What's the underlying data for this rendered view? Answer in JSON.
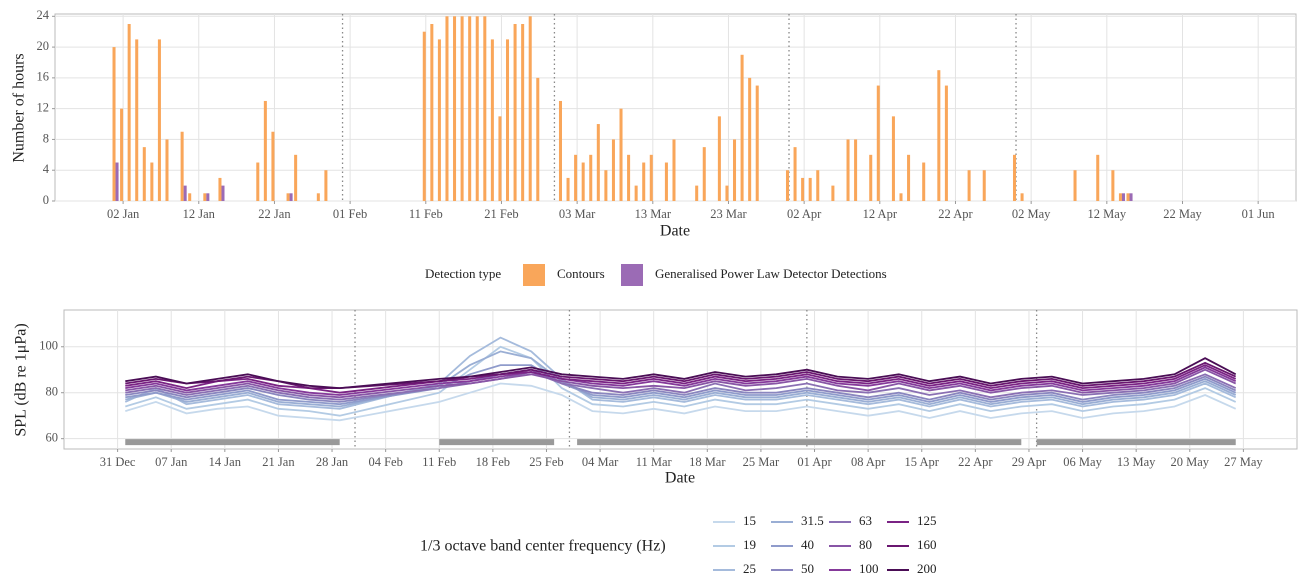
{
  "chart_data": [
    {
      "type": "bar",
      "y_label": "Number of hours",
      "x_label": "Date",
      "legend_title": "Detection type",
      "legend": "bottom",
      "grid": true,
      "x": [
        "01 Jan",
        "02 Jan",
        "03 Jan",
        "04 Jan",
        "05 Jan",
        "06 Jan",
        "07 Jan",
        "08 Jan",
        "10 Jan",
        "11 Jan",
        "13 Jan",
        "15 Jan",
        "20 Jan",
        "21 Jan",
        "22 Jan",
        "24 Jan",
        "25 Jan",
        "28 Jan",
        "29 Jan",
        "11 Feb",
        "12 Feb",
        "13 Feb",
        "14 Feb",
        "15 Feb",
        "16 Feb",
        "17 Feb",
        "18 Feb",
        "19 Feb",
        "20 Feb",
        "21 Feb",
        "22 Feb",
        "23 Feb",
        "24 Feb",
        "25 Feb",
        "26 Feb",
        "01 Mar",
        "02 Mar",
        "03 Mar",
        "04 Mar",
        "05 Mar",
        "06 Mar",
        "07 Mar",
        "08 Mar",
        "09 Mar",
        "10 Mar",
        "11 Mar",
        "12 Mar",
        "13 Mar",
        "15 Mar",
        "16 Mar",
        "19 Mar",
        "20 Mar",
        "22 Mar",
        "23 Mar",
        "24 Mar",
        "25 Mar",
        "26 Mar",
        "27 Mar",
        "31 Mar",
        "01 Apr",
        "02 Apr",
        "03 Apr",
        "04 Apr",
        "06 Apr",
        "08 Apr",
        "09 Apr",
        "11 Apr",
        "12 Apr",
        "14 Apr",
        "15 Apr",
        "16 Apr",
        "18 Apr",
        "20 Apr",
        "21 Apr",
        "24 Apr",
        "26 Apr",
        "30 Apr",
        "01 May",
        "08 May",
        "11 May",
        "13 May",
        "14 May",
        "15 May"
      ],
      "series": [
        {
          "name": "Contours",
          "color": "#f9a65a",
          "values": [
            20,
            12,
            23,
            21,
            7,
            5,
            21,
            8,
            9,
            1,
            1,
            3,
            5,
            13,
            9,
            1,
            6,
            1,
            4,
            22,
            23,
            21,
            24,
            24,
            24,
            24,
            24,
            24,
            21,
            11,
            21,
            23,
            23,
            24,
            16,
            13,
            3,
            6,
            5,
            6,
            10,
            4,
            8,
            12,
            6,
            2,
            5,
            6,
            5,
            8,
            2,
            7,
            11,
            2,
            8,
            19,
            16,
            15,
            4,
            7,
            3,
            3,
            4,
            2,
            8,
            8,
            6,
            15,
            11,
            1,
            6,
            5,
            17,
            15,
            4,
            4,
            6,
            1,
            4,
            6,
            4,
            1,
            1
          ]
        },
        {
          "name": "Generalised Power Law Detector Detections",
          "color": "#9b6bb5",
          "values": [
            5,
            null,
            null,
            null,
            null,
            null,
            null,
            null,
            2,
            null,
            1,
            2,
            null,
            null,
            null,
            1,
            null,
            null,
            null,
            null,
            null,
            null,
            null,
            null,
            null,
            null,
            null,
            null,
            null,
            null,
            null,
            null,
            null,
            null,
            null,
            null,
            null,
            null,
            null,
            null,
            null,
            null,
            null,
            null,
            null,
            null,
            null,
            null,
            null,
            null,
            null,
            null,
            null,
            null,
            null,
            null,
            null,
            null,
            null,
            null,
            null,
            null,
            null,
            null,
            null,
            null,
            null,
            null,
            null,
            null,
            null,
            null,
            null,
            null,
            null,
            null,
            null,
            null,
            null,
            null,
            null,
            1,
            1
          ]
        }
      ],
      "xlim": [
        "24 Dec",
        "06 Jun"
      ],
      "ylim": [
        0,
        24.3
      ],
      "xticks": [
        "02 Jan",
        "12 Jan",
        "22 Jan",
        "01 Feb",
        "11 Feb",
        "21 Feb",
        "03 Mar",
        "13 Mar",
        "23 Mar",
        "02 Apr",
        "12 Apr",
        "22 Apr",
        "02 May",
        "12 May",
        "22 May",
        "01 Jun"
      ],
      "yticks": [
        0,
        4,
        8,
        12,
        16,
        20,
        24
      ],
      "vlines": [
        "31 Jan",
        "28 Feb",
        "31 Mar",
        "30 Apr"
      ]
    },
    {
      "type": "line",
      "y_label": "SPL (dB re 1μPa)",
      "x_label": "Date",
      "legend_title": "1/3 octave band center frequency (Hz)",
      "legend": "bottom",
      "grid": true,
      "x": [
        "01 Jan",
        "05 Jan",
        "09 Jan",
        "13 Jan",
        "17 Jan",
        "21 Jan",
        "25 Jan",
        "29 Jan",
        "11 Feb",
        "15 Feb",
        "19 Feb",
        "23 Feb",
        "27 Feb",
        "03 Mar",
        "07 Mar",
        "11 Mar",
        "15 Mar",
        "19 Mar",
        "23 Mar",
        "27 Mar",
        "31 Mar",
        "04 Apr",
        "08 Apr",
        "12 Apr",
        "16 Apr",
        "20 Apr",
        "24 Apr",
        "28 Apr",
        "02 May",
        "06 May",
        "10 May",
        "14 May",
        "18 May",
        "22 May",
        "26 May"
      ],
      "series": [
        {
          "name": "15",
          "color": "#c6d9ec",
          "values": [
            72,
            76,
            71,
            73,
            74,
            70,
            69,
            68,
            76,
            80,
            84,
            83,
            79,
            72,
            71,
            73,
            71,
            74,
            72,
            72,
            74,
            72,
            70,
            72,
            69,
            72,
            69,
            71,
            72,
            69,
            71,
            72,
            74,
            79,
            73
          ]
        },
        {
          "name": "19",
          "color": "#b3cbe4",
          "values": [
            74,
            78,
            73,
            75,
            77,
            73,
            72,
            70,
            80,
            90,
            100,
            95,
            82,
            75,
            74,
            76,
            74,
            77,
            75,
            75,
            77,
            75,
            73,
            75,
            72,
            75,
            72,
            74,
            75,
            72,
            74,
            75,
            77,
            82,
            76
          ]
        },
        {
          "name": "25",
          "color": "#a5bbdc",
          "values": [
            76,
            82,
            75,
            77,
            79,
            75,
            74,
            73,
            84,
            96,
            104,
            98,
            86,
            77,
            76,
            78,
            76,
            79,
            77,
            77,
            79,
            77,
            75,
            77,
            74,
            77,
            74,
            76,
            77,
            74,
            76,
            77,
            79,
            84,
            78
          ]
        },
        {
          "name": "31.5",
          "color": "#9aaed4",
          "values": [
            77,
            80,
            76,
            78,
            80,
            76,
            75,
            74,
            83,
            92,
            98,
            95,
            85,
            78,
            77,
            79,
            77,
            80,
            78,
            78,
            80,
            78,
            76,
            78,
            75,
            78,
            75,
            77,
            78,
            75,
            77,
            78,
            80,
            85,
            79
          ]
        },
        {
          "name": "40",
          "color": "#8f9bcb",
          "values": [
            78,
            80,
            77,
            79,
            81,
            77,
            76,
            75,
            82,
            88,
            92,
            92,
            84,
            79,
            78,
            80,
            78,
            81,
            79,
            79,
            81,
            79,
            77,
            79,
            76,
            79,
            76,
            78,
            79,
            76,
            78,
            79,
            81,
            86,
            80
          ]
        },
        {
          "name": "50",
          "color": "#8a86bf",
          "values": [
            79,
            81,
            78,
            80,
            82,
            79,
            77,
            76,
            82,
            85,
            88,
            90,
            84,
            80,
            79,
            81,
            79,
            82,
            80,
            80,
            82,
            80,
            78,
            80,
            77,
            80,
            77,
            79,
            80,
            77,
            79,
            80,
            82,
            87,
            81
          ]
        },
        {
          "name": "63",
          "color": "#8a6fb3",
          "values": [
            80,
            82,
            79,
            81,
            83,
            80,
            78,
            77,
            82,
            84,
            86,
            89,
            84,
            82,
            80,
            82,
            80,
            84,
            81,
            82,
            84,
            81,
            80,
            82,
            79,
            81,
            78,
            80,
            81,
            79,
            80,
            81,
            83,
            88,
            82
          ]
        },
        {
          "name": "80",
          "color": "#8855a6",
          "values": [
            81,
            83,
            80,
            82,
            84,
            81,
            79,
            78,
            83,
            84,
            86,
            88,
            85,
            83,
            82,
            83,
            82,
            85,
            83,
            84,
            86,
            83,
            81,
            84,
            81,
            83,
            80,
            82,
            83,
            80,
            81,
            82,
            84,
            90,
            84
          ]
        },
        {
          "name": "100",
          "color": "#85399a",
          "values": [
            82,
            84,
            81,
            83,
            85,
            82,
            80,
            79,
            84,
            85,
            87,
            89,
            86,
            84,
            83,
            85,
            83,
            86,
            84,
            85,
            87,
            84,
            83,
            85,
            82,
            84,
            81,
            83,
            84,
            81,
            82,
            83,
            85,
            91,
            85
          ]
        },
        {
          "name": "125",
          "color": "#7a2384",
          "values": [
            83,
            85,
            82,
            85,
            86,
            83,
            82,
            80,
            85,
            86,
            88,
            89,
            86,
            85,
            84,
            86,
            84,
            87,
            85,
            86,
            88,
            85,
            84,
            86,
            83,
            85,
            82,
            84,
            85,
            82,
            83,
            84,
            86,
            92,
            86
          ]
        },
        {
          "name": "160",
          "color": "#6a1670",
          "values": [
            84,
            86,
            84,
            85,
            87,
            85,
            82,
            82,
            85,
            87,
            88,
            90,
            87,
            86,
            85,
            87,
            85,
            88,
            86,
            87,
            89,
            86,
            85,
            87,
            84,
            86,
            83,
            85,
            86,
            83,
            84,
            85,
            87,
            93,
            87
          ]
        },
        {
          "name": "200",
          "color": "#4a0d55",
          "values": [
            85,
            87,
            84,
            86,
            88,
            85,
            83,
            82,
            86,
            87,
            89,
            91,
            88,
            87,
            86,
            88,
            86,
            89,
            87,
            88,
            90,
            87,
            86,
            88,
            85,
            87,
            84,
            86,
            87,
            84,
            85,
            86,
            88,
            95,
            88
          ]
        }
      ],
      "xlim": [
        "24 Dec",
        "03 Jun"
      ],
      "ylim": [
        55.5,
        116
      ],
      "xticks": [
        "31 Dec",
        "07 Jan",
        "14 Jan",
        "21 Jan",
        "28 Jan",
        "04 Feb",
        "11 Feb",
        "18 Feb",
        "25 Feb",
        "04 Mar",
        "11 Mar",
        "18 Mar",
        "25 Mar",
        "01 Apr",
        "08 Apr",
        "15 Apr",
        "22 Apr",
        "29 Apr",
        "06 May",
        "13 May",
        "20 May",
        "27 May"
      ],
      "yticks": [
        60,
        80,
        100
      ],
      "vlines": [
        "31 Jan",
        "28 Feb",
        "31 Mar",
        "30 Apr"
      ],
      "segment_y": 58.5,
      "segments": [
        {
          "start": "01 Jan",
          "end": "29 Jan"
        },
        {
          "start": "11 Feb",
          "end": "26 Feb"
        },
        {
          "start": "01 Mar",
          "end": "28 Apr"
        },
        {
          "start": "30 Apr",
          "end": "26 May"
        }
      ]
    }
  ]
}
